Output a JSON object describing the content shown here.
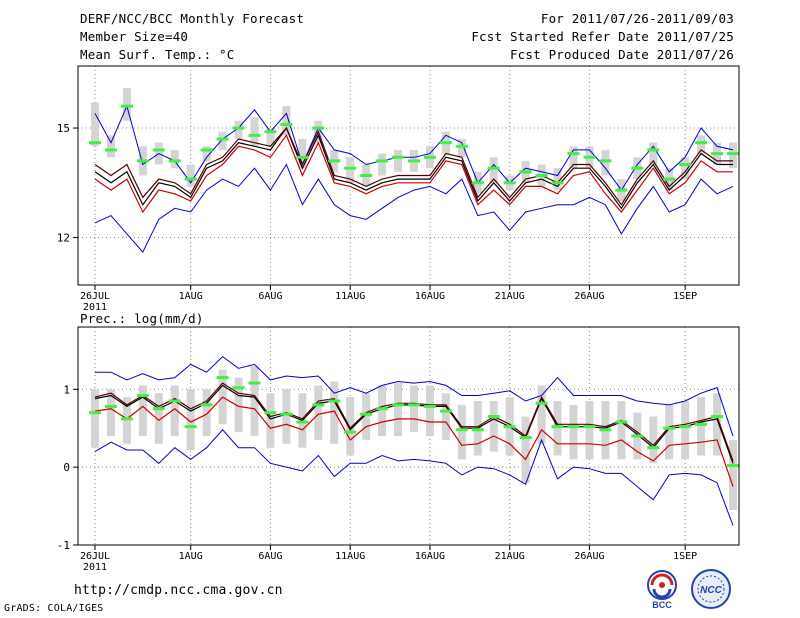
{
  "header": {
    "title": "DERF/NCC/BCC Monthly Forecast",
    "member_size": "Member Size=40",
    "variable": "Mean Surf. Temp.: °C",
    "period": "For 2011/07/26-2011/09/03",
    "started": "Fcst Started Refer Date 2011/07/25",
    "produced": "Fcst Produced Date 2011/07/26"
  },
  "footer": {
    "url": "http://cmdp.ncc.cma.gov.cn",
    "grads": "GrADS: COLA/IGES",
    "logo1_text": "BCC",
    "logo2_text": "NCC"
  },
  "colors": {
    "upper": "#0000cc",
    "lower": "#0000cc",
    "mean": "#000000",
    "second": "#cc0000",
    "box": "#d4d4d4",
    "marker": "#44ee44",
    "grid": "#888888"
  },
  "chart_data": [
    {
      "type": "line",
      "title": "Mean Surf. Temp.: °C",
      "ylim": [
        10.7,
        16.7
      ],
      "yticks": [
        12,
        15
      ],
      "x_tick_labels": [
        "26JUL",
        "1AUG",
        "6AUG",
        "11AUG",
        "16AUG",
        "21AUG",
        "26AUG",
        "1SEP"
      ],
      "x_tick_days": [
        0,
        6,
        11,
        16,
        21,
        26,
        31,
        37
      ],
      "year_label": "2011",
      "days": 40,
      "series": [
        {
          "name": "upper",
          "values": [
            15.4,
            14.6,
            15.6,
            14.0,
            14.3,
            14.1,
            13.5,
            14.2,
            14.7,
            15.0,
            15.5,
            14.9,
            15.4,
            14.0,
            15.0,
            14.4,
            14.3,
            14.0,
            14.1,
            14.2,
            14.2,
            14.3,
            14.8,
            14.6,
            13.5,
            14.0,
            13.5,
            13.9,
            13.8,
            13.7,
            14.4,
            14.4,
            13.9,
            13.3,
            14.0,
            14.5,
            13.8,
            14.2,
            15.0,
            14.5,
            14.4
          ]
        },
        {
          "name": "mean",
          "values": [
            13.8,
            13.5,
            13.8,
            12.9,
            13.5,
            13.4,
            13.1,
            13.9,
            14.1,
            14.6,
            14.5,
            14.4,
            15.0,
            13.9,
            14.8,
            13.6,
            13.5,
            13.3,
            13.5,
            13.6,
            13.6,
            13.6,
            14.2,
            14.1,
            13.0,
            13.5,
            13.0,
            13.5,
            13.6,
            13.4,
            13.9,
            13.9,
            13.4,
            12.8,
            13.5,
            14.0,
            13.3,
            13.7,
            14.3,
            14.0,
            14.0
          ]
        },
        {
          "name": "second",
          "values": [
            13.6,
            13.3,
            13.6,
            12.7,
            13.3,
            13.2,
            13.0,
            13.7,
            14.0,
            14.5,
            14.4,
            14.2,
            14.8,
            13.7,
            14.6,
            13.5,
            13.4,
            13.2,
            13.4,
            13.5,
            13.5,
            13.5,
            14.1,
            14.0,
            12.9,
            13.3,
            12.9,
            13.4,
            13.4,
            13.2,
            13.7,
            13.8,
            13.2,
            12.7,
            13.3,
            13.9,
            13.2,
            13.5,
            14.1,
            13.8,
            13.8
          ]
        },
        {
          "name": "dark",
          "values": [
            14.0,
            13.7,
            14.0,
            13.1,
            13.6,
            13.5,
            13.2,
            14.0,
            14.2,
            14.7,
            14.6,
            14.5,
            15.0,
            14.0,
            14.9,
            13.7,
            13.6,
            13.4,
            13.6,
            13.7,
            13.7,
            13.7,
            14.3,
            14.2,
            13.1,
            13.6,
            13.1,
            13.6,
            13.7,
            13.5,
            14.0,
            14.0,
            13.5,
            12.9,
            13.6,
            14.1,
            13.4,
            13.8,
            14.4,
            14.1,
            14.1
          ]
        },
        {
          "name": "lower",
          "values": [
            12.4,
            12.6,
            12.1,
            11.6,
            12.5,
            12.8,
            12.7,
            13.3,
            13.6,
            13.4,
            13.9,
            13.3,
            14.0,
            12.9,
            13.6,
            12.9,
            12.6,
            12.5,
            12.8,
            13.1,
            13.3,
            13.4,
            13.2,
            13.6,
            12.6,
            12.7,
            12.2,
            12.7,
            12.8,
            12.9,
            12.9,
            13.1,
            12.9,
            12.1,
            12.8,
            13.4,
            12.7,
            12.9,
            13.6,
            13.2,
            13.4
          ]
        },
        {
          "name": "marker",
          "values": [
            14.6,
            14.4,
            15.6,
            14.1,
            14.4,
            14.1,
            13.6,
            14.4,
            14.7,
            15.0,
            14.8,
            14.9,
            15.1,
            14.2,
            15.0,
            14.1,
            13.9,
            13.7,
            14.1,
            14.2,
            14.1,
            14.2,
            14.6,
            14.5,
            13.5,
            13.9,
            13.5,
            13.8,
            13.7,
            13.5,
            14.3,
            14.2,
            14.1,
            13.3,
            13.9,
            14.4,
            13.6,
            14.0,
            14.6,
            14.3,
            14.3
          ]
        }
      ],
      "box_low": [
        14.5,
        14.2,
        15.2,
        13.7,
        14.0,
        13.9,
        13.4,
        14.1,
        14.4,
        14.7,
        14.5,
        14.5,
        14.8,
        13.9,
        14.6,
        13.8,
        13.5,
        13.4,
        13.7,
        13.8,
        13.8,
        13.9,
        14.3,
        14.2,
        13.2,
        13.5,
        13.3,
        13.5,
        13.4,
        13.3,
        13.9,
        13.9,
        13.7,
        13.0,
        13.6,
        14.0,
        13.3,
        13.6,
        14.3,
        14.0,
        13.9
      ],
      "box_high": [
        15.7,
        14.8,
        16.1,
        14.5,
        14.6,
        14.4,
        14.0,
        14.5,
        14.9,
        15.2,
        15.3,
        15.0,
        15.6,
        14.7,
        15.2,
        14.4,
        14.2,
        14.0,
        14.3,
        14.4,
        14.4,
        14.5,
        14.9,
        14.7,
        13.8,
        14.2,
        13.7,
        14.1,
        14.0,
        13.9,
        14.5,
        14.5,
        14.4,
        13.6,
        14.2,
        14.6,
        13.9,
        14.2,
        14.8,
        14.6,
        14.6
      ]
    },
    {
      "type": "line",
      "title": "Prec.: log(mm/d)",
      "ylim": [
        -1,
        1.8
      ],
      "yticks": [
        -1,
        0,
        1
      ],
      "x_tick_labels": [
        "26JUL",
        "1AUG",
        "6AUG",
        "11AUG",
        "16AUG",
        "21AUG",
        "26AUG",
        "1SEP"
      ],
      "x_tick_days": [
        0,
        6,
        11,
        16,
        21,
        26,
        31,
        37
      ],
      "year_label": "2011",
      "days": 40,
      "series": [
        {
          "name": "upper",
          "values": [
            1.22,
            1.22,
            1.12,
            1.2,
            1.12,
            1.15,
            1.32,
            1.22,
            1.42,
            1.27,
            1.32,
            1.12,
            1.17,
            1.15,
            1.17,
            0.95,
            1.02,
            0.95,
            1.05,
            1.1,
            1.08,
            1.1,
            1.05,
            0.92,
            0.92,
            0.95,
            0.98,
            0.85,
            0.92,
            1.15,
            0.92,
            0.92,
            0.92,
            0.92,
            0.85,
            0.82,
            0.8,
            0.85,
            0.95,
            1.02,
            0.4
          ]
        },
        {
          "name": "mean",
          "values": [
            0.88,
            0.92,
            0.78,
            0.9,
            0.75,
            0.85,
            0.72,
            0.82,
            1.05,
            0.92,
            0.9,
            0.62,
            0.68,
            0.6,
            0.82,
            0.85,
            0.48,
            0.68,
            0.75,
            0.8,
            0.8,
            0.78,
            0.78,
            0.5,
            0.5,
            0.62,
            0.52,
            0.38,
            0.88,
            0.52,
            0.52,
            0.52,
            0.5,
            0.58,
            0.42,
            0.25,
            0.5,
            0.52,
            0.58,
            0.62,
            0.05
          ]
        },
        {
          "name": "dark",
          "values": [
            0.9,
            0.95,
            0.8,
            0.92,
            0.78,
            0.88,
            0.75,
            0.85,
            1.08,
            0.95,
            0.92,
            0.65,
            0.7,
            0.62,
            0.85,
            0.88,
            0.5,
            0.7,
            0.78,
            0.82,
            0.82,
            0.8,
            0.8,
            0.52,
            0.52,
            0.65,
            0.55,
            0.4,
            0.9,
            0.55,
            0.55,
            0.55,
            0.52,
            0.6,
            0.45,
            0.28,
            0.52,
            0.55,
            0.6,
            0.65,
            0.08
          ]
        },
        {
          "name": "second",
          "values": [
            0.72,
            0.75,
            0.62,
            0.78,
            0.6,
            0.75,
            0.58,
            0.68,
            0.9,
            0.78,
            0.75,
            0.5,
            0.55,
            0.48,
            0.68,
            0.72,
            0.35,
            0.52,
            0.58,
            0.62,
            0.62,
            0.58,
            0.58,
            0.28,
            0.3,
            0.4,
            0.3,
            0.1,
            0.48,
            0.3,
            0.3,
            0.3,
            0.28,
            0.35,
            0.2,
            0.08,
            0.28,
            0.3,
            0.32,
            0.35,
            -0.25
          ]
        },
        {
          "name": "lower",
          "values": [
            0.2,
            0.32,
            0.22,
            0.22,
            0.05,
            0.25,
            0.1,
            0.25,
            0.48,
            0.25,
            0.25,
            0.05,
            0.0,
            -0.05,
            0.15,
            -0.12,
            0.05,
            0.05,
            0.15,
            0.08,
            0.1,
            0.08,
            0.05,
            -0.1,
            0.0,
            -0.02,
            -0.1,
            -0.22,
            0.35,
            -0.15,
            0.0,
            -0.02,
            -0.08,
            -0.08,
            -0.25,
            -0.42,
            -0.1,
            -0.08,
            -0.1,
            -0.2,
            -0.75
          ]
        },
        {
          "name": "marker",
          "values": [
            0.7,
            0.78,
            0.62,
            0.92,
            0.75,
            0.85,
            0.52,
            0.8,
            1.15,
            1.02,
            1.08,
            0.7,
            0.68,
            0.58,
            0.8,
            0.85,
            0.45,
            0.68,
            0.75,
            0.8,
            0.8,
            0.78,
            0.72,
            0.48,
            0.48,
            0.65,
            0.52,
            0.38,
            0.82,
            0.52,
            0.52,
            0.52,
            0.48,
            0.58,
            0.4,
            0.25,
            0.5,
            0.52,
            0.55,
            0.65,
            0.02
          ]
        }
      ],
      "box_low": [
        0.25,
        0.4,
        0.3,
        0.4,
        0.3,
        0.4,
        0.22,
        0.4,
        0.55,
        0.45,
        0.4,
        0.25,
        0.3,
        0.25,
        0.35,
        0.3,
        0.15,
        0.35,
        0.4,
        0.4,
        0.45,
        0.4,
        0.35,
        0.1,
        0.15,
        0.2,
        0.15,
        -0.2,
        0.3,
        0.15,
        0.1,
        0.1,
        0.1,
        0.1,
        0.1,
        0.05,
        0.1,
        0.1,
        0.15,
        0.15,
        -0.55
      ],
      "box_high": [
        1.0,
        1.0,
        0.9,
        1.05,
        0.95,
        1.05,
        1.0,
        1.0,
        1.25,
        1.15,
        1.3,
        0.95,
        1.0,
        0.95,
        1.05,
        1.1,
        0.9,
        0.95,
        1.05,
        1.08,
        1.05,
        1.05,
        0.95,
        0.8,
        0.85,
        0.85,
        0.9,
        0.65,
        1.05,
        0.85,
        0.8,
        0.85,
        0.85,
        0.85,
        0.7,
        0.65,
        0.8,
        0.85,
        0.9,
        0.95,
        0.35
      ]
    }
  ]
}
